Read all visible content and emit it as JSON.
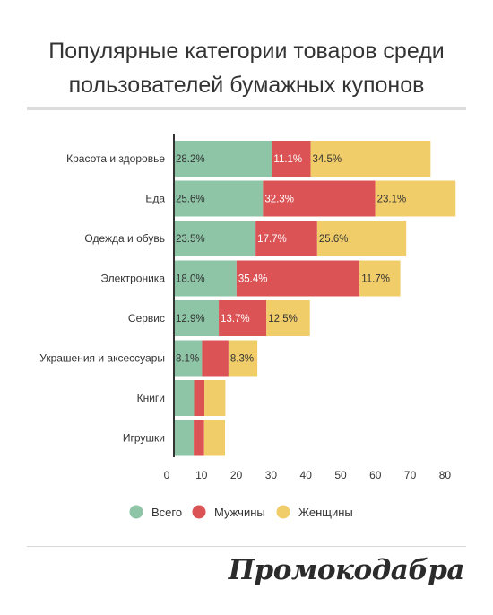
{
  "title_line1": "Популярные категории товаров среди",
  "title_line2": "пользователей бумажных купонов",
  "logo_text": "Промокодабра",
  "chart_data": {
    "type": "bar",
    "orientation": "horizontal",
    "stacked": true,
    "categories": [
      "Красота и здоровье",
      "Еда",
      "Одежда и обувь",
      "Электроника",
      "Сервис",
      "Украшения и аксессуары",
      "Книги",
      "Игрушки"
    ],
    "series": [
      {
        "name": "Всего",
        "color": "#8dc5a6",
        "values": [
          28.2,
          25.6,
          23.5,
          18.0,
          12.9,
          8.1,
          5.8,
          5.7
        ],
        "labels": [
          "28.2%",
          "25.6%",
          "23.5%",
          "18.0%",
          "12.9%",
          "8.1%",
          "",
          ""
        ]
      },
      {
        "name": "Мужчины",
        "color": "#dc5356",
        "values": [
          11.1,
          32.3,
          17.7,
          35.4,
          13.7,
          7.6,
          3.0,
          3.0
        ],
        "labels": [
          "11.1%",
          "32.3%",
          "17.7%",
          "35.4%",
          "13.7%",
          "",
          "",
          ""
        ]
      },
      {
        "name": "Женщины",
        "color": "#f1cd69",
        "values": [
          34.5,
          23.1,
          25.6,
          11.7,
          12.5,
          8.3,
          6.0,
          6.0
        ],
        "labels": [
          "34.5%",
          "23.1%",
          "25.6%",
          "11.7%",
          "12.5%",
          "8.3%",
          "",
          ""
        ]
      }
    ],
    "xlim": [
      0,
      82
    ],
    "xticks": [
      0,
      10,
      20,
      30,
      40,
      50,
      60,
      70,
      80
    ],
    "legend_position": "bottom",
    "grid": false,
    "title": "Популярные категории товаров среди пользователей бумажных купонов",
    "xlabel": "",
    "ylabel": ""
  }
}
